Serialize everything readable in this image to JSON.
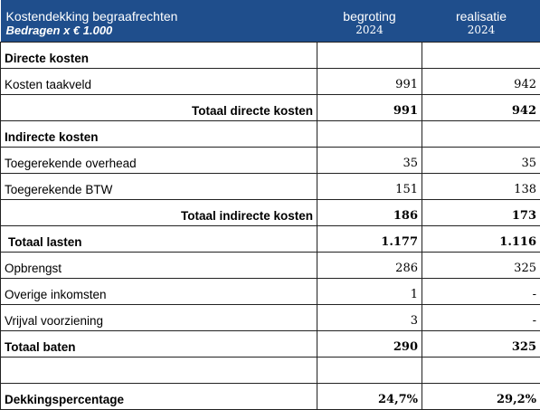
{
  "header": {
    "title": "Kostendekking begraafrechten",
    "subtitle": "Bedragen x € 1.000",
    "col1": "begroting",
    "col1_year": "2024",
    "col2": "realisatie",
    "col2_year": "2024"
  },
  "rows": [
    {
      "label": "Directe kosten",
      "v1": "",
      "v2": ""
    },
    {
      "label": "Kosten taakveld",
      "v1": "991",
      "v2": "942"
    },
    {
      "label": "Totaal directe kosten",
      "v1": "991",
      "v2": "942"
    },
    {
      "label": "Indirecte kosten",
      "v1": "",
      "v2": ""
    },
    {
      "label": "Toegerekende overhead",
      "v1": "35",
      "v2": "35"
    },
    {
      "label": "Toegerekende BTW",
      "v1": "151",
      "v2": "138"
    },
    {
      "label": "Totaal indirecte kosten",
      "v1": "186",
      "v2": "173"
    },
    {
      "label": "Totaal lasten",
      "v1": "1.177",
      "v2": "1.116"
    },
    {
      "label": "Opbrengst",
      "v1": "286",
      "v2": "325"
    },
    {
      "label": "Overige inkomsten",
      "v1": "1",
      "v2": "-"
    },
    {
      "label": "Vrijval voorziening",
      "v1": "3",
      "v2": "-"
    },
    {
      "label": "Totaal baten",
      "v1": "290",
      "v2": "325"
    },
    {
      "label": "",
      "v1": "",
      "v2": ""
    },
    {
      "label": "Dekkingspercentage",
      "v1": "24,7%",
      "v2": "29,2%"
    }
  ]
}
